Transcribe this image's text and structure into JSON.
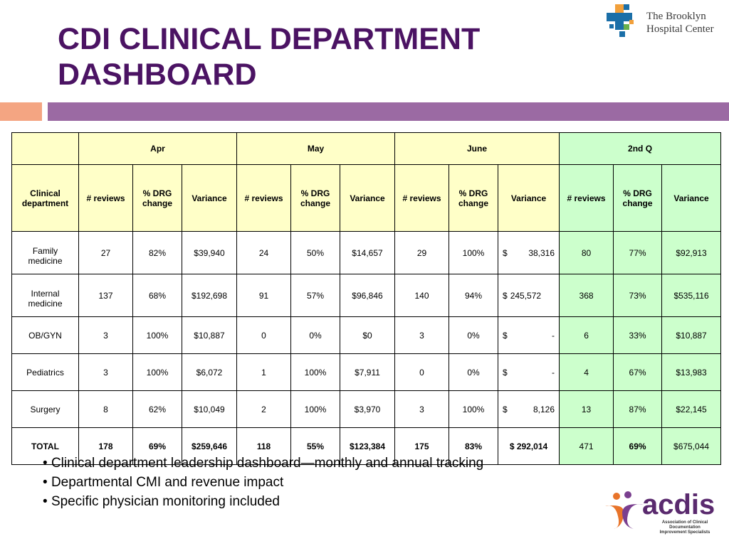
{
  "title": {
    "line1": "CDI CLINICAL DEPARTMENT",
    "line2": "DASHBOARD"
  },
  "logo_top": {
    "line1": "The Brooklyn",
    "line2": "Hospital Center"
  },
  "logo_bottom": {
    "word": "acdis",
    "tag_line1": "Association of Clinical Documentation",
    "tag_line2": "Improvement Specialists"
  },
  "colors": {
    "title": "#4b1363",
    "yellow_header": "#ffffc8",
    "green_header": "#ccffcc",
    "accent_purple": "#9b6aa3",
    "accent_orange": "#f4a582"
  },
  "table": {
    "periods": [
      "Apr",
      "May",
      "June",
      "2nd Q"
    ],
    "dept_header": "Clinical department",
    "sub_headers": [
      "# reviews",
      "% DRG change",
      "Variance"
    ],
    "rows": [
      {
        "dept": "Family medicine",
        "cells": [
          "27",
          "82%",
          "$39,940",
          "24",
          "50%",
          "$14,657",
          "29",
          "100%",
          "38,316",
          "80",
          "77%",
          "$92,913"
        ]
      },
      {
        "dept": "Internal medicine",
        "cells": [
          "137",
          "68%",
          "$192,698",
          "91",
          "57%",
          "$96,846",
          "140",
          "94%",
          "245,572",
          "368",
          "73%",
          "$535,116"
        ]
      },
      {
        "dept": "OB/GYN",
        "cells": [
          "3",
          "100%",
          "$10,887",
          "0",
          "0%",
          "$0",
          "3",
          "0%",
          "-",
          "6",
          "33%",
          "$10,887"
        ]
      },
      {
        "dept": "Pediatrics",
        "cells": [
          "3",
          "100%",
          "$6,072",
          "1",
          "100%",
          "$7,911",
          "0",
          "0%",
          "-",
          "4",
          "67%",
          "$13,983"
        ]
      },
      {
        "dept": "Surgery",
        "cells": [
          "8",
          "62%",
          "$10,049",
          "2",
          "100%",
          "$3,970",
          "3",
          "100%",
          "8,126",
          "13",
          "87%",
          "$22,145"
        ]
      }
    ],
    "total": {
      "dept": "TOTAL",
      "cells": [
        "178",
        "69%",
        "$259,646",
        "118",
        "55%",
        "$123,384",
        "175",
        "83%",
        "$ 292,014",
        "471",
        "69%",
        "$675,044"
      ]
    },
    "currency_symbol": "$"
  },
  "bullets": [
    "Clinical department leadership dashboard—monthly and annual tracking",
    "Departmental CMI and revenue impact",
    "Specific physician monitoring included"
  ]
}
